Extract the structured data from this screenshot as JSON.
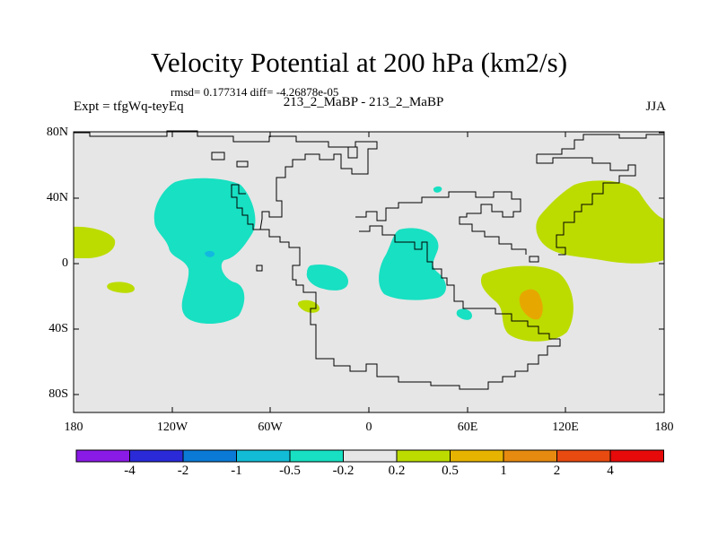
{
  "title": "Velocity Potential at 200 hPa (km2/s)",
  "stats_text": "rmsd= 0.177314 diff= -4.26878e-05",
  "experiment_label": "Expt = tfgWq-teyEq",
  "comparison_label": "213_2_MaBP - 213_2_MaBP",
  "season": "JJA",
  "lat_ticks": [
    "80N",
    "40N",
    "0",
    "40S",
    "80S"
  ],
  "lon_ticks": [
    "180",
    "120W",
    "60W",
    "0",
    "60E",
    "120E",
    "180"
  ],
  "colorbar": {
    "labels": [
      "-4",
      "-2",
      "-1",
      "-0.5",
      "-0.2",
      "0.2",
      "0.5",
      "1",
      "2",
      "4"
    ],
    "colors": [
      "#8a1ae6",
      "#2a2ad9",
      "#0a7ad6",
      "#12bcd6",
      "#18e0c2",
      "#e6e6e6",
      "#bcdc00",
      "#e6b400",
      "#e68a10",
      "#e84a10",
      "#e60a0a"
    ]
  },
  "colors": {
    "background": "#e6e6e6",
    "negative_weak": "#18e0c2",
    "negative_mid": "#12b8e0",
    "positive_weak": "#bcdc00",
    "positive_mid": "#e6a800",
    "coast": "#000000"
  }
}
